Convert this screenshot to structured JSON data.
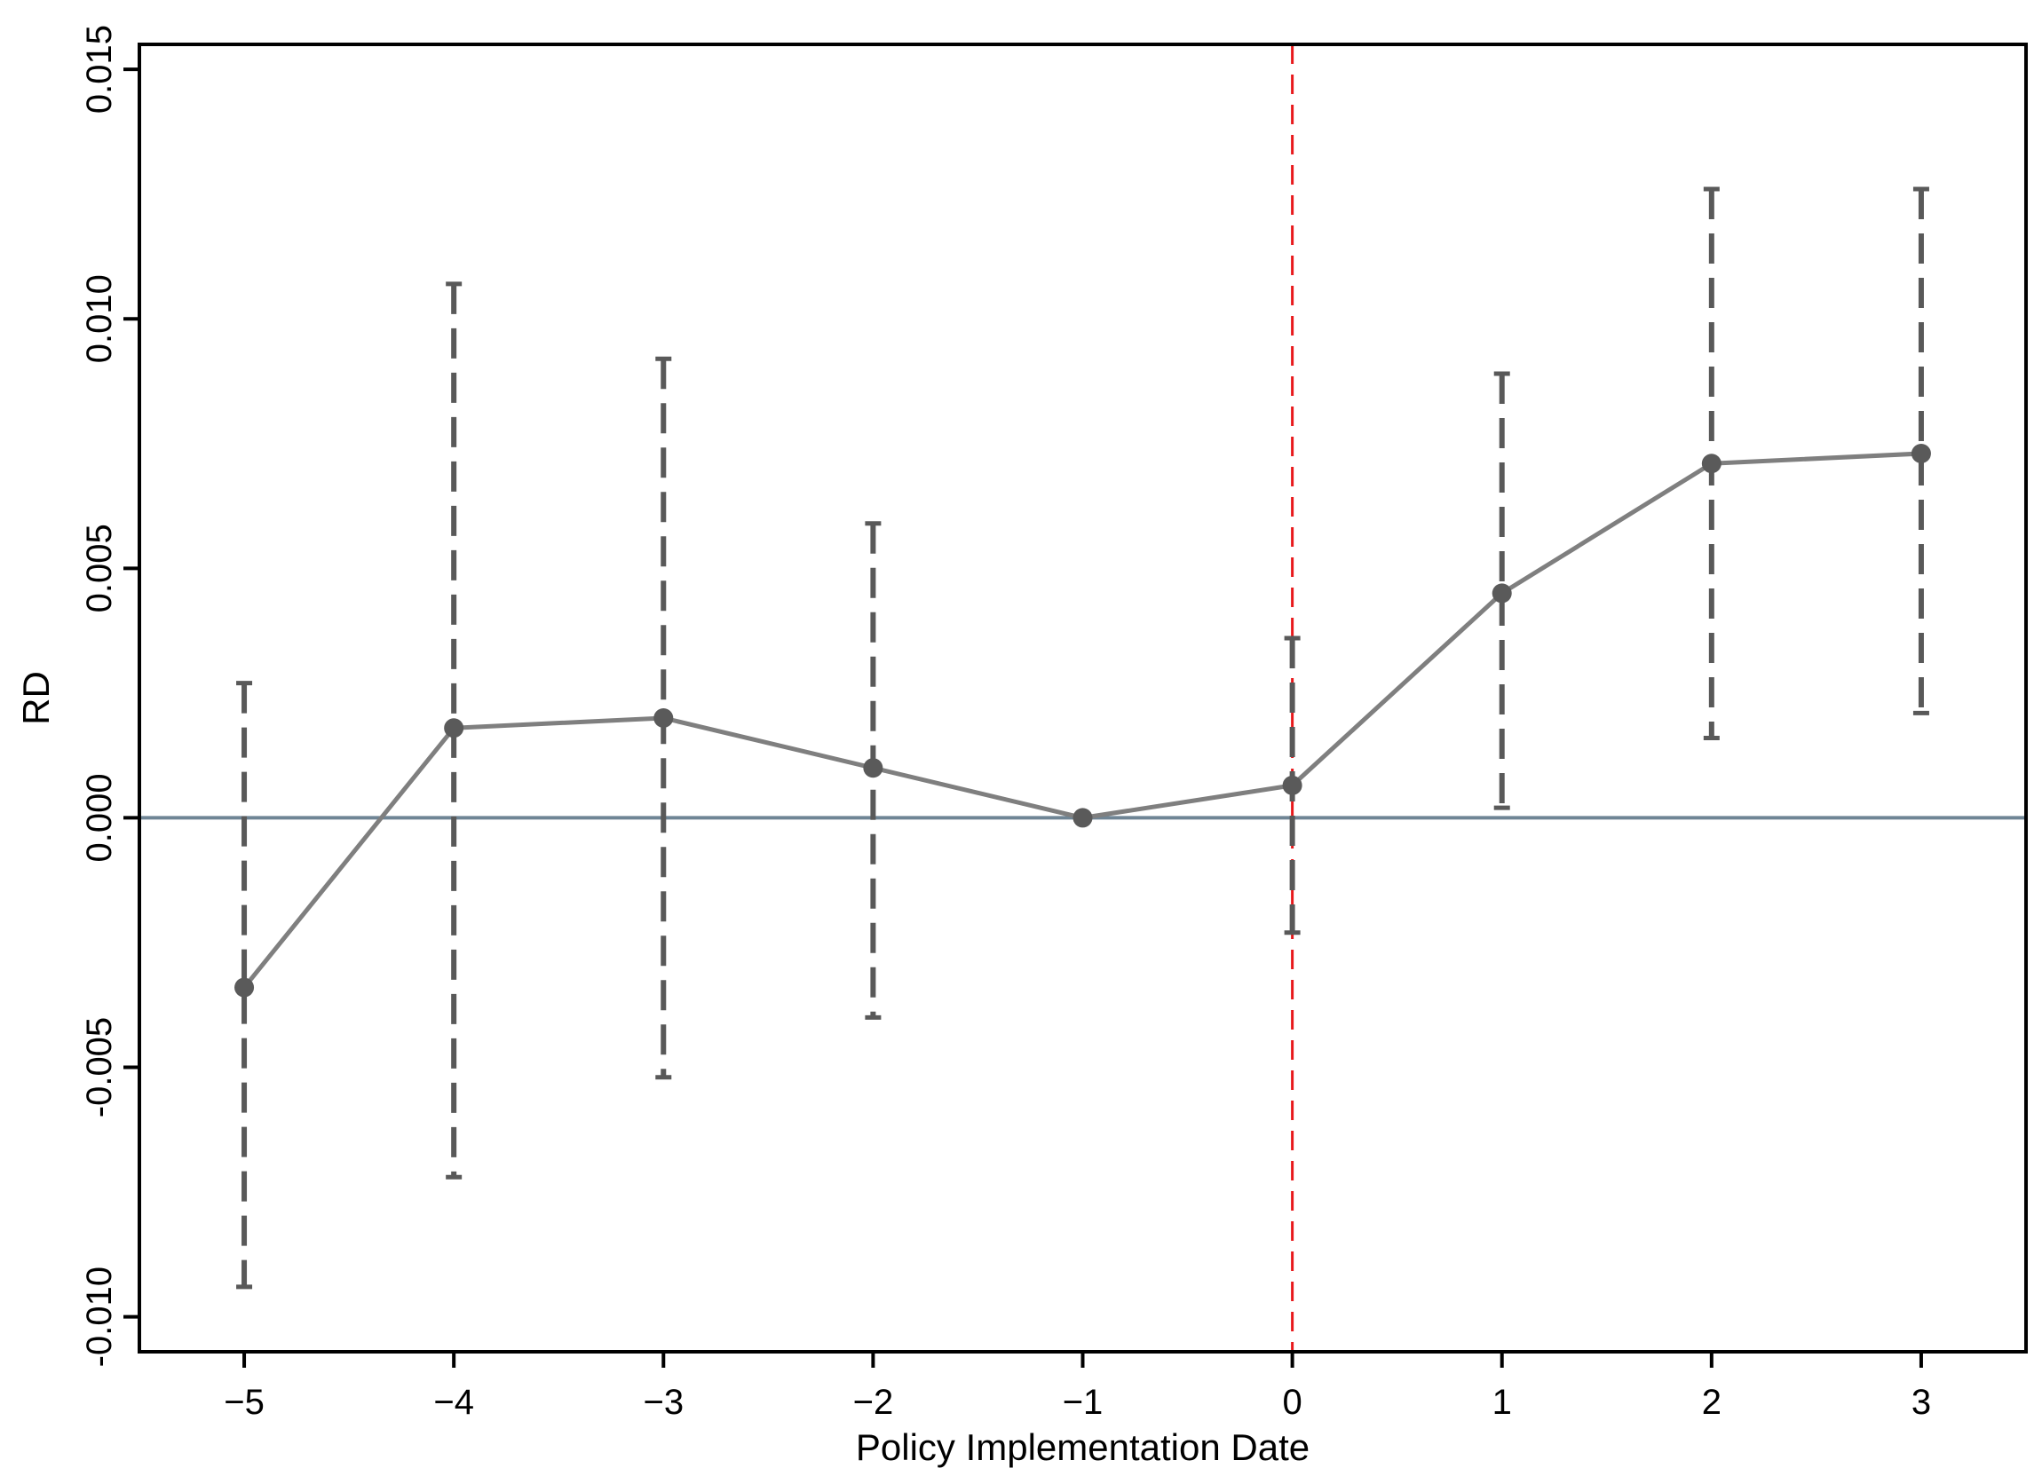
{
  "chart_data": {
    "type": "line",
    "title": "",
    "xlabel": "Policy Implementation Date",
    "ylabel": "RD",
    "xlim": [
      -5.5,
      3.5
    ],
    "ylim": [
      -0.0107,
      0.0155
    ],
    "x_ticks": [
      -5,
      -4,
      -3,
      -2,
      -1,
      0,
      1,
      2,
      3
    ],
    "x_tick_labels": [
      "−5",
      "−4",
      "−3",
      "−2",
      "−1",
      "0",
      "1",
      "2",
      "3"
    ],
    "y_ticks": [
      -0.01,
      -0.005,
      0.0,
      0.005,
      0.01,
      0.015
    ],
    "y_tick_labels": [
      "-0.010",
      "-0.005",
      "0.000",
      "0.005",
      "0.010",
      "0.015"
    ],
    "grid": false,
    "legend": "none",
    "reference_lines": {
      "horizontal": {
        "y": 0,
        "color": "#6f8595",
        "style": "solid"
      },
      "vertical": {
        "x": 0,
        "color": "#e8191c",
        "style": "dashed"
      }
    },
    "series": [
      {
        "x": [
          -5,
          -4,
          -3,
          -2,
          -1,
          0,
          1,
          2,
          3
        ],
        "values": [
          -0.0034,
          0.0018,
          0.002,
          0.001,
          0.0,
          0.00065,
          0.0045,
          0.0071,
          0.0073
        ],
        "ci_lower": [
          -0.0094,
          -0.0072,
          -0.0052,
          -0.004,
          0.0,
          -0.0023,
          0.0002,
          0.0016,
          0.0021
        ],
        "ci_upper": [
          0.0027,
          0.0107,
          0.0092,
          0.0059,
          0.0,
          0.0036,
          0.0089,
          0.0126,
          0.0126
        ],
        "line_color": "#7f7f7f",
        "marker_color": "#5a5a5a",
        "errorbar_color": "#595959"
      }
    ]
  }
}
